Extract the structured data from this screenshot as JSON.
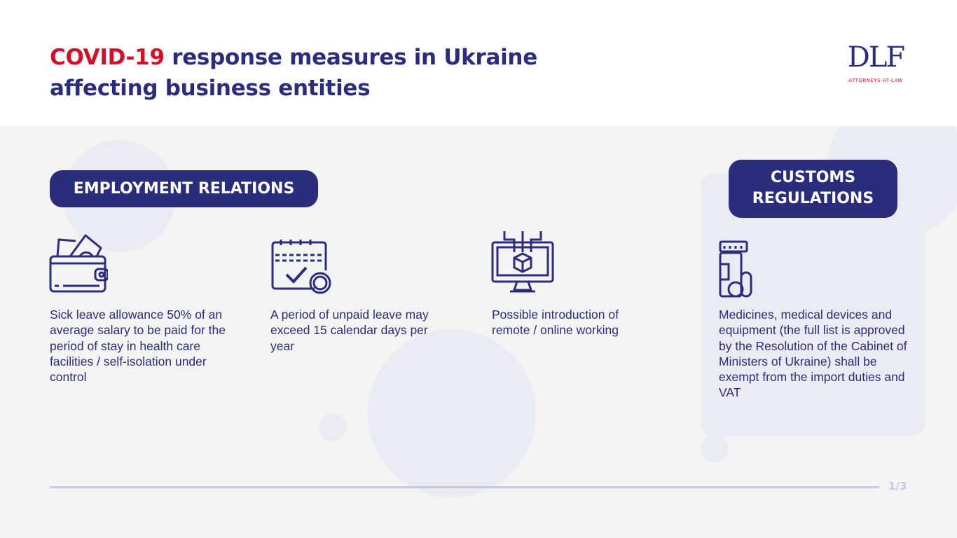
{
  "header": {
    "title_highlight": "COVID-19",
    "title_rest": " response measures in Ukraine",
    "title_line2": "affecting business entities"
  },
  "logo": {
    "mark": "DLF",
    "subtitle": "ATTORNEYS-AT-LAW"
  },
  "sections": {
    "employment": {
      "label": "EMPLOYMENT RELATIONS",
      "items": [
        {
          "icon": "wallet-icon",
          "text": "Sick leave allowance 50% of an average salary to be paid for the period of stay in health care facilities / self-isolation under control"
        },
        {
          "icon": "calendar-check-icon",
          "text": "A period of unpaid leave may exceed 15 calendar days per year"
        },
        {
          "icon": "computer-box-icon",
          "text": "Possible introduction of remote / online working"
        }
      ]
    },
    "customs": {
      "label_line1": "CUSTOMS",
      "label_line2": "REGULATIONS",
      "items": [
        {
          "icon": "medicine-bottle-icon",
          "text": "Medicines, medical devices and equipment (the full list is approved by the Resolution of the Cabinet of Ministers of Ukraine) shall be exempt from the import duties and VAT"
        }
      ]
    }
  },
  "footer": {
    "page": "1/3"
  },
  "colors": {
    "navy": "#2b2d7c",
    "red": "#d0112b",
    "background": "#f4f4f5"
  }
}
